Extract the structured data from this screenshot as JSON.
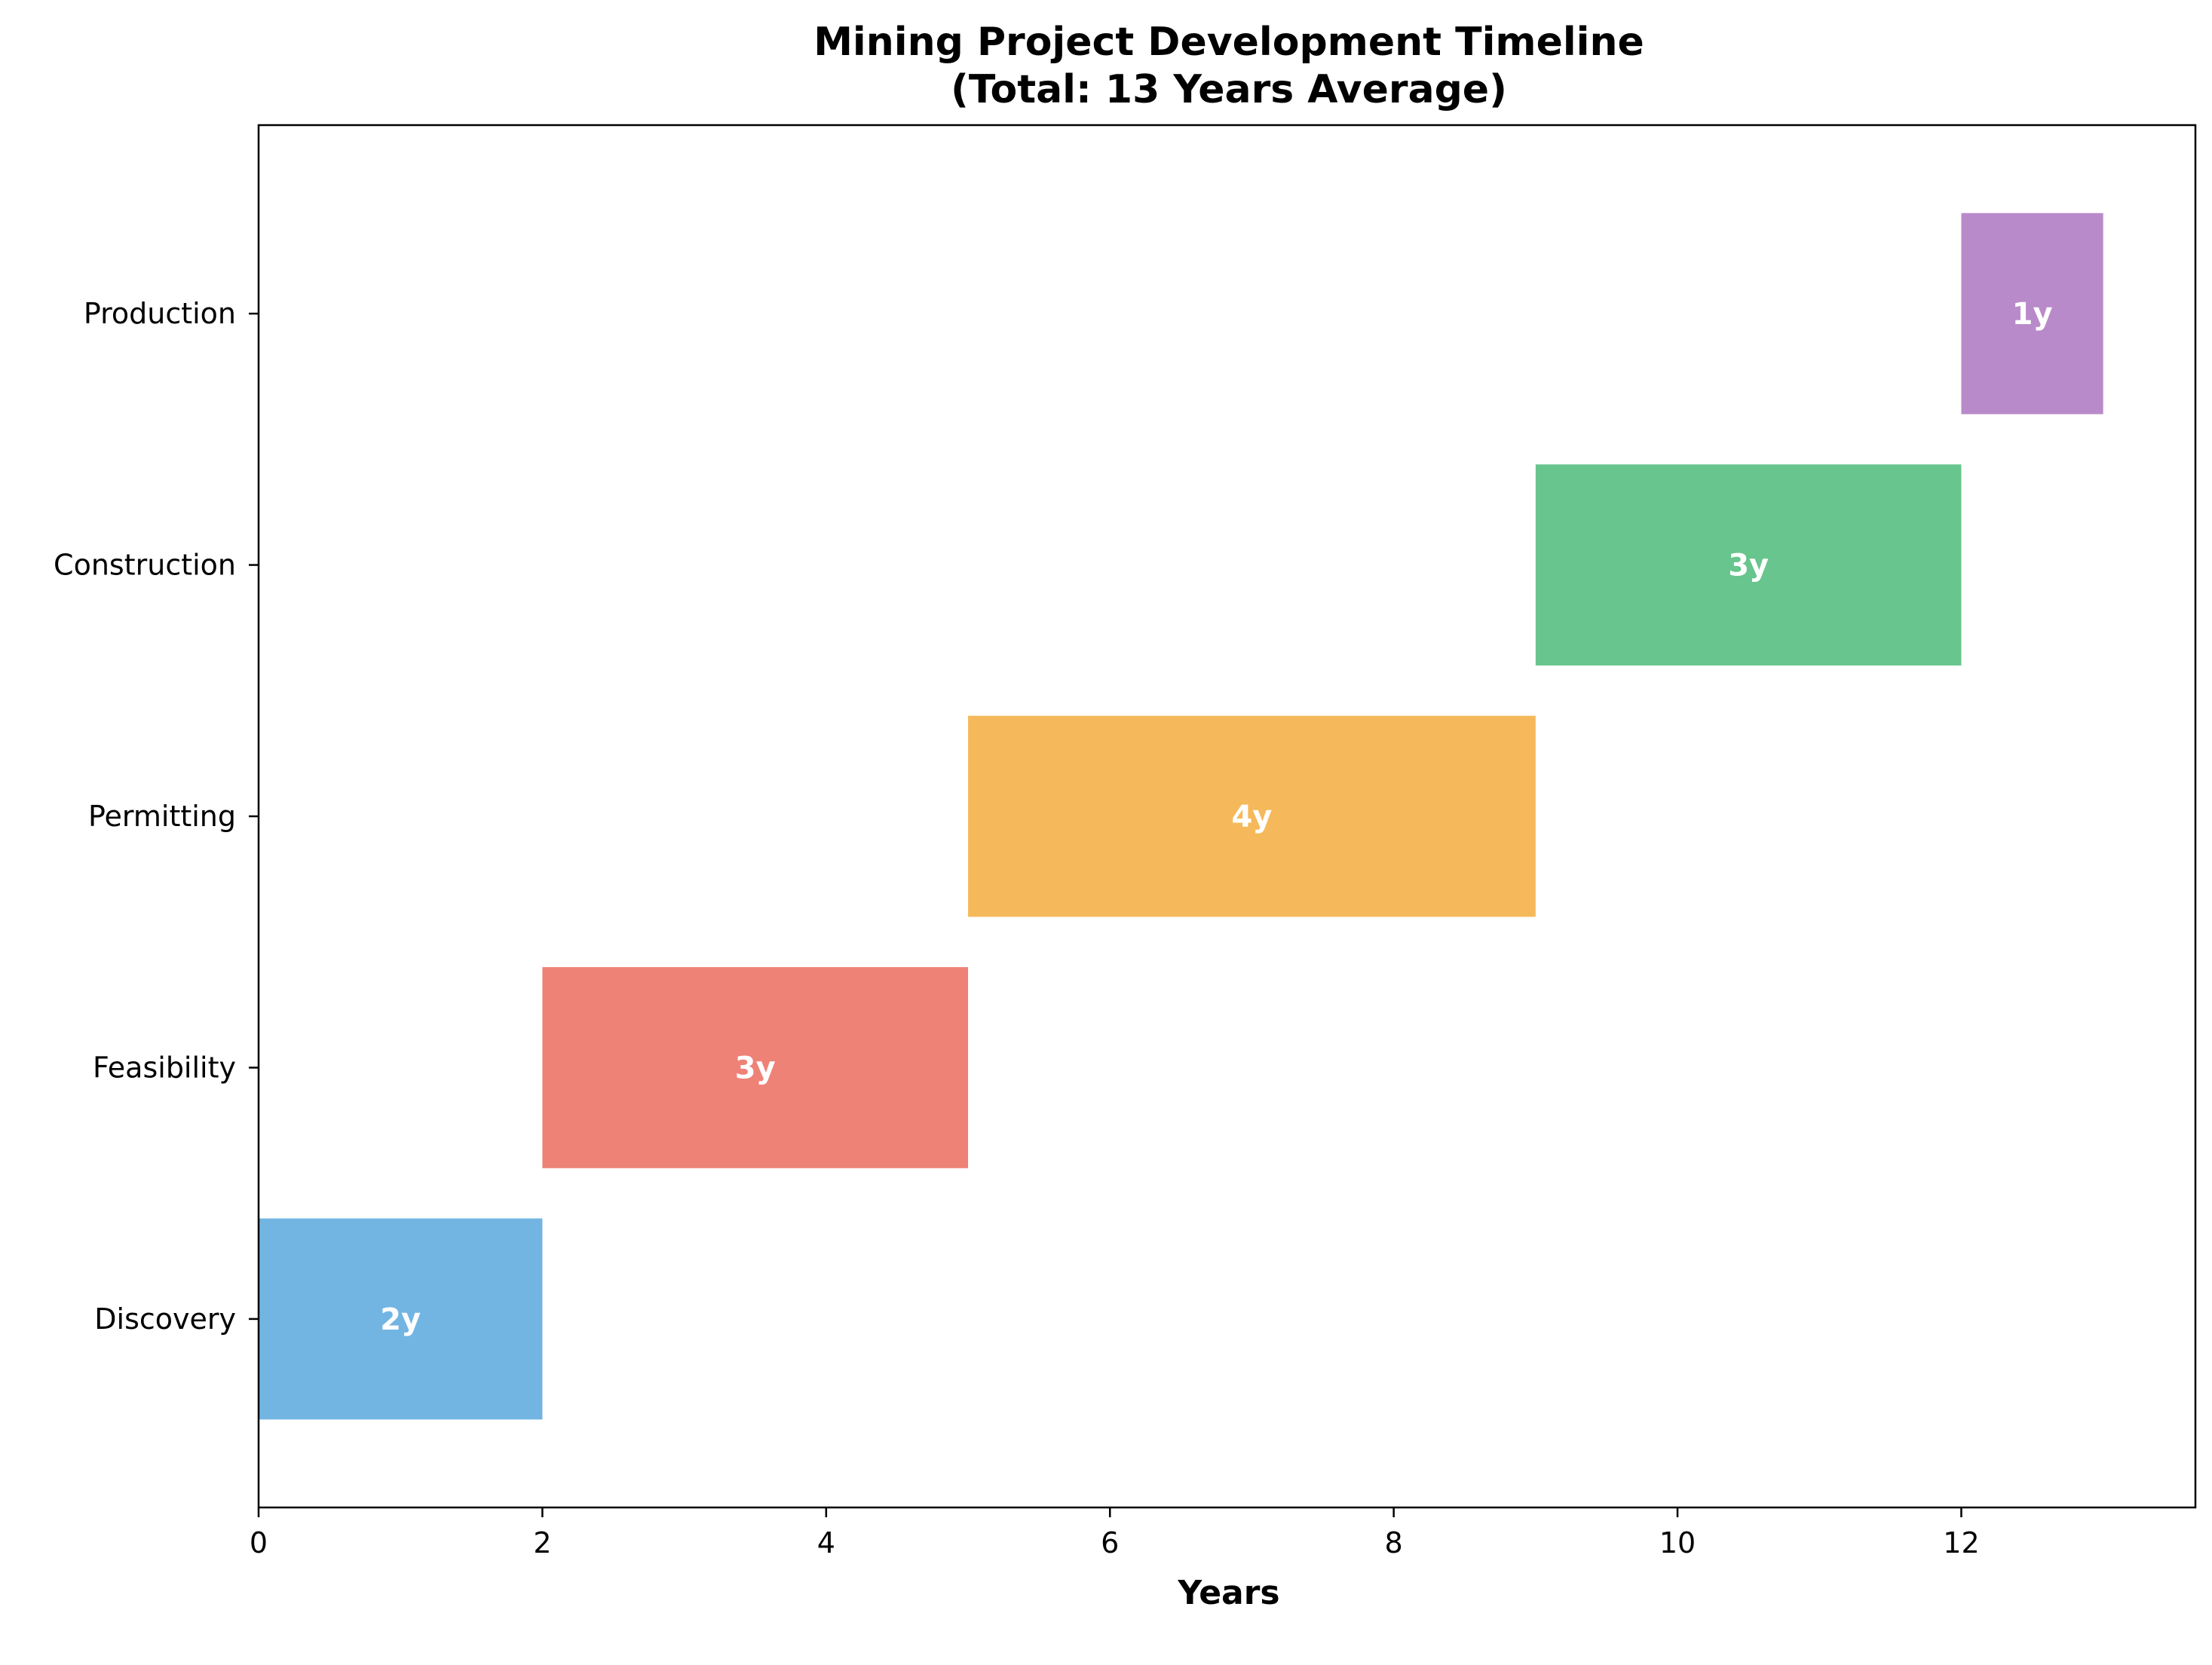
{
  "chart_data": {
    "type": "bar",
    "orientation": "horizontal-gantt",
    "title": "Mining Project Development Timeline",
    "subtitle": "(Total: 13 Years Average)",
    "xlabel": "Years",
    "ylabel": "",
    "xlim": [
      0,
      13.65
    ],
    "xticks": [
      0,
      2,
      4,
      6,
      8,
      10,
      12
    ],
    "grid": false,
    "categories": [
      "Discovery",
      "Feasibility",
      "Permitting",
      "Construction",
      "Production"
    ],
    "starts": [
      0,
      2,
      5,
      9,
      12
    ],
    "durations": [
      2,
      3,
      4,
      3,
      1
    ],
    "bar_labels": [
      "2y",
      "3y",
      "4y",
      "3y",
      "1y"
    ],
    "colors": [
      "#72b5e3",
      "#ee8277",
      "#f5b95b",
      "#67c58d",
      "#b98ac9"
    ]
  }
}
